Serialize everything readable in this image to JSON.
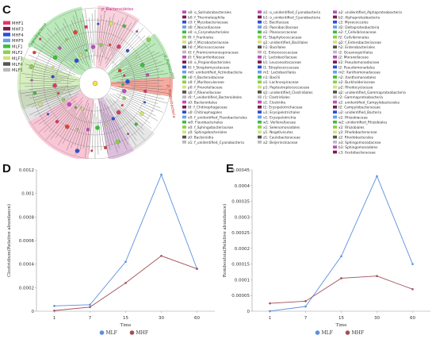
{
  "panels": {
    "c_letter": "C",
    "d_letter": "D",
    "e_letter": "E"
  },
  "group_legend": [
    {
      "label": "MHF1",
      "color": "#e8336b"
    },
    {
      "label": "MHF3",
      "color": "#7a1f4a"
    },
    {
      "label": "MHF4",
      "color": "#2b4fd6"
    },
    {
      "label": "MHF5",
      "color": "#6aa0f0"
    },
    {
      "label": "MLF1",
      "color": "#3dbf3d"
    },
    {
      "label": "MLF2",
      "color": "#8ad24a"
    },
    {
      "label": "MLF3",
      "color": "#d2e27a"
    },
    {
      "label": "MLF4",
      "color": "#555555"
    },
    {
      "label": "MLF5",
      "color": "#bbbbbb"
    }
  ],
  "clade_labels": [
    {
      "text": "p_Bacteroidetes",
      "color": "#d02b8b"
    },
    {
      "text": "Cyanobacteria",
      "color": "#2f8f2f"
    },
    {
      "text": "p_Proteobacteria",
      "color": "#c0392b"
    },
    {
      "text": "p_Firmicutes",
      "color": "#2f8f2f"
    }
  ],
  "taxa_columns": [
    [
      {
        "t": "a0: o_Solirubrobacterales",
        "c": "#c04cc0"
      },
      {
        "t": "b0: f_Thermoleophilia",
        "c": "#7a1f4a"
      },
      {
        "t": "c0: f_Mycobacteriaceae",
        "c": "#2b4fd6"
      },
      {
        "t": "d0: f_Nocardiaceae",
        "c": "#6aa0f0"
      },
      {
        "t": "e0: o_Corynebacteriales",
        "c": "#3dbf3d"
      },
      {
        "t": "f0: f_Frankiales",
        "c": "#8ad24a"
      },
      {
        "t": "g0: f_Microbacteriaceae",
        "c": "#d2e27a"
      },
      {
        "t": "h0: f_Micrococcaceae",
        "c": "#555555"
      },
      {
        "t": "i0: f_Promicromonosporaceae",
        "c": "#bbbbbb"
      },
      {
        "t": "j0: f_Nocardioidaceae",
        "c": "#c04cc0"
      },
      {
        "t": "k0: o_Propionibacteriales",
        "c": "#7a1f4a"
      },
      {
        "t": "l0: f_Streptomycetaceae",
        "c": "#2b4fd6"
      },
      {
        "t": "m0: unidentified_Actinobacteria",
        "c": "#6aa0f0"
      },
      {
        "t": "n0: f_Bacteroidaceae",
        "c": "#3dbf3d"
      },
      {
        "t": "o0: f_Muribaculaceae",
        "c": "#8ad24a"
      },
      {
        "t": "p0: f_Prevotellaceae",
        "c": "#d2e27a"
      },
      {
        "t": "q0: f_Rikenellaceae",
        "c": "#555555"
      },
      {
        "t": "r0: f_unidentified_Bacteroidales",
        "c": "#bbbbbb"
      },
      {
        "t": "s0: Bacteroidales",
        "c": "#c04cc0"
      },
      {
        "t": "t0: f_Chitinophagaceae",
        "c": "#7a1f4a"
      },
      {
        "t": "u0: Chitinophagales",
        "c": "#2b4fd6"
      },
      {
        "t": "v0: f_unidentified_Flavobacteriales",
        "c": "#6aa0f0"
      },
      {
        "t": "w0: Flavobacteriales",
        "c": "#3dbf3d"
      },
      {
        "t": "x0: f_Sphingobacteriaceae",
        "c": "#8ad24a"
      },
      {
        "t": "y0: Sphingobacteriales",
        "c": "#d2e27a"
      },
      {
        "t": "z0: Bacteroidia",
        "c": "#555555"
      },
      {
        "t": "a1: f_unidentified_Cyanobacteria",
        "c": "#bbbbbb"
      }
    ],
    [
      {
        "t": "a1: o_unidentified_Cyanobacteria",
        "c": "#c04cc0"
      },
      {
        "t": "b1: o_unidentified_Cyanobacteria",
        "c": "#7a1f4a"
      },
      {
        "t": "c1: Bacillaceae",
        "c": "#2b4fd6"
      },
      {
        "t": "d1: Paenibacillaceae",
        "c": "#6aa0f0"
      },
      {
        "t": "e1: Planococcaceae",
        "c": "#3dbf3d"
      },
      {
        "t": "f1: Staphylococcaceae",
        "c": "#8ad24a"
      },
      {
        "t": "g1: unidentified_Bacillales",
        "c": "#d2e27a"
      },
      {
        "t": "h1: Bacillales",
        "c": "#555555"
      },
      {
        "t": "i1: Enterococcaceae",
        "c": "#bbbbbb"
      },
      {
        "t": "j1: Lactobacillaceae",
        "c": "#c04cc0"
      },
      {
        "t": "k1: Leuconostocaceae",
        "c": "#7a1f4a"
      },
      {
        "t": "l1: Streptococcaceae",
        "c": "#2b4fd6"
      },
      {
        "t": "m1: Lactobacillales",
        "c": "#6aa0f0"
      },
      {
        "t": "n1: Bacilli",
        "c": "#3dbf3d"
      },
      {
        "t": "o1: Lachnospiraceae",
        "c": "#8ad24a"
      },
      {
        "t": "p1: Peptostreptococcaceae",
        "c": "#d2e27a"
      },
      {
        "t": "q1: unidentified_Clostridiales",
        "c": "#555555"
      },
      {
        "t": "r1: Clostridiales",
        "c": "#bbbbbb"
      },
      {
        "t": "s1: Clostridia",
        "c": "#c04cc0"
      },
      {
        "t": "t1: Erysipelotrichaceae",
        "c": "#7a1f4a"
      },
      {
        "t": "u1: Erysipelotrichales",
        "c": "#2b4fd6"
      },
      {
        "t": "v1: Erysipelotrichia",
        "c": "#6aa0f0"
      },
      {
        "t": "w1: Veillonellaceae",
        "c": "#3dbf3d"
      },
      {
        "t": "x1: Selenomonadales",
        "c": "#8ad24a"
      },
      {
        "t": "y1: Negativicutes",
        "c": "#d2e27a"
      },
      {
        "t": "z1: Caulobacteraceae",
        "c": "#555555"
      },
      {
        "t": "a2: Beijerinckiaceae",
        "c": "#bbbbbb"
      }
    ],
    [
      {
        "t": "a2: unidentified_Alphaproteobacteria",
        "c": "#c04cc0"
      },
      {
        "t": "b2: Alphaproteobacteria",
        "c": "#7a1f4a"
      },
      {
        "t": "c2: Myxococcales",
        "c": "#2b4fd6"
      },
      {
        "t": "d2: Deltaproteobacteria",
        "c": "#6aa0f0"
      },
      {
        "t": "e2: f_Cellvibrionaceae",
        "c": "#3dbf3d"
      },
      {
        "t": "f2: Cellvibrionales",
        "c": "#8ad24a"
      },
      {
        "t": "g2: f_Enterobacteriaceae",
        "c": "#d2e27a"
      },
      {
        "t": "h2: Enterobacteriales",
        "c": "#555555"
      },
      {
        "t": "i2: Oceanospirillales",
        "c": "#bbbbbb"
      },
      {
        "t": "j2: Moraxellaceae",
        "c": "#c04cc0"
      },
      {
        "t": "k2: Pseudomonadaceae",
        "c": "#7a1f4a"
      },
      {
        "t": "l2: Pseudomonadales",
        "c": "#2b4fd6"
      },
      {
        "t": "m2: Xanthomonadaceae",
        "c": "#6aa0f0"
      },
      {
        "t": "n2: Xanthomonadales",
        "c": "#3dbf3d"
      },
      {
        "t": "o2: Burkholderiaceae",
        "c": "#8ad24a"
      },
      {
        "t": "p2: Rhodocyclaceae",
        "c": "#d2e27a"
      },
      {
        "t": "q2: unidentified_Gammaproteobacteria",
        "c": "#555555"
      },
      {
        "t": "r2: Gammaproteobacteria",
        "c": "#bbbbbb"
      },
      {
        "t": "s2: unidentified_Campylobacterales",
        "c": "#c04cc0"
      },
      {
        "t": "t2: Campylobacteraceae",
        "c": "#7a1f4a"
      },
      {
        "t": "u2: unidentified_Bacteria",
        "c": "#2b4fd6"
      },
      {
        "t": "v2: Rhizobiaceae",
        "c": "#6aa0f0"
      },
      {
        "t": "w2: unidentified_Rhizobiales",
        "c": "#3dbf3d"
      },
      {
        "t": "x2: Rhizobiales",
        "c": "#8ad24a"
      },
      {
        "t": "y2: Rhodobacteraceae",
        "c": "#d2e27a"
      },
      {
        "t": "z2: Rhodobacterales",
        "c": "#555555"
      },
      {
        "t": "a3: Sphingomonadaceae",
        "c": "#bbbbbb"
      },
      {
        "t": "b3: Sphingomonadales",
        "c": "#c04cc0"
      },
      {
        "t": "c3: Acetobacteraceae",
        "c": "#7a1f4a"
      }
    ]
  ],
  "colors": {
    "mlf": "#5b8fe0",
    "mhf": "#a0505a"
  },
  "chart_data": [
    {
      "type": "line",
      "panel": "D",
      "x": [
        1,
        7,
        15,
        30,
        60
      ],
      "xlabel": "Time",
      "ylabel": "Clostridium(Relative abundance)",
      "ylim": [
        0,
        0.0012
      ],
      "yticks": [
        "0",
        "0.0002",
        "0.0004",
        "0.0006",
        "0.0008",
        "0.001",
        "0.0012"
      ],
      "ytick_values": [
        0,
        0.0002,
        0.0004,
        0.0006,
        0.0008,
        0.001,
        0.0012
      ],
      "legend_position": "bottom-center",
      "series": [
        {
          "name": "MLF",
          "values": [
            4.5e-05,
            5.5e-05,
            0.00042,
            0.00116,
            0.00036
          ]
        },
        {
          "name": "MHF",
          "values": [
            5e-06,
            3.5e-05,
            0.00024,
            0.00047,
            0.00036
          ]
        }
      ]
    },
    {
      "type": "line",
      "panel": "E",
      "x": [
        1,
        7,
        15,
        30,
        60
      ],
      "xlabel": "Time",
      "ylabel": "Romboutsia(Relative abundance)",
      "ylim": [
        0,
        0.00045
      ],
      "yticks": [
        "0",
        "0.00005",
        "0.0001",
        "0.00015",
        "0.0002",
        "0.00025",
        "0.0003",
        "0.00035",
        "0.0004",
        "0.00045"
      ],
      "ytick_values": [
        0,
        5e-05,
        0.0001,
        0.00015,
        0.0002,
        0.00025,
        0.0003,
        0.00035,
        0.0004,
        0.00045
      ],
      "legend_position": "bottom-center",
      "series": [
        {
          "name": "MLF",
          "values": [
            5e-07,
            1.5e-05,
            0.000175,
            0.00043,
            0.00015
          ]
        },
        {
          "name": "MHF",
          "values": [
            2.5e-05,
            3.2e-05,
            0.000105,
            0.000112,
            7e-05
          ]
        }
      ]
    }
  ]
}
